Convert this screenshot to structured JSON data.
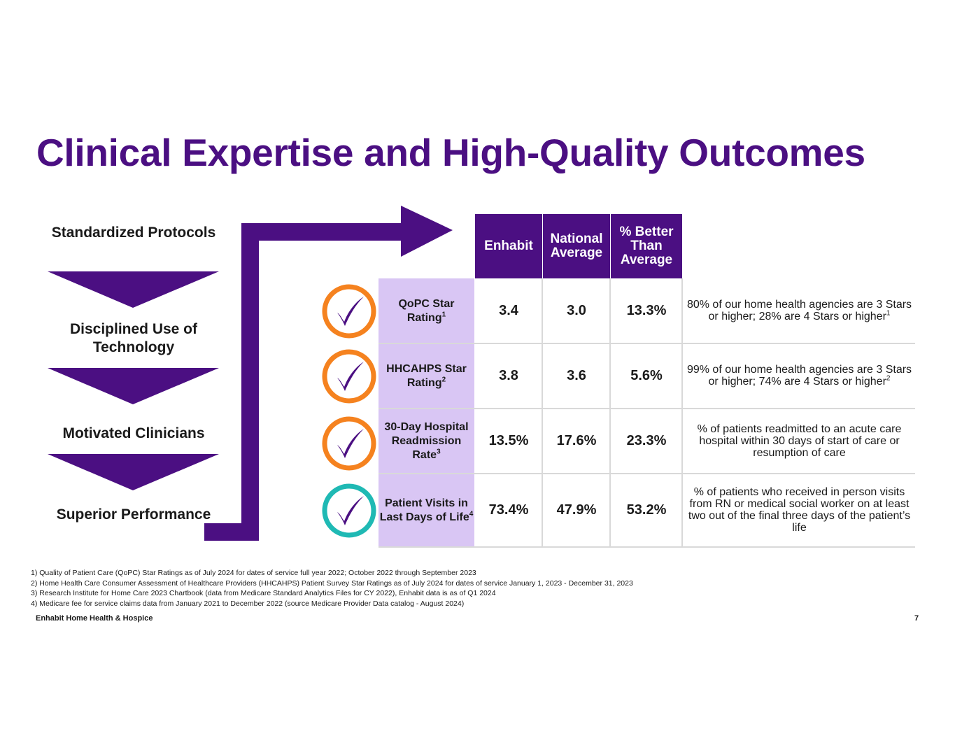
{
  "title": "Clinical Expertise and High-Quality Outcomes",
  "colors": {
    "primary_purple": "#4b0f82",
    "label_lavender": "#d9c6f4",
    "check_orange": "#f5821f",
    "check_teal": "#1fb9b4",
    "border_gray": "#d9d9d9"
  },
  "process_steps": [
    {
      "label": "Standardized Protocols"
    },
    {
      "label": "Disciplined Use of Technology"
    },
    {
      "label": "Motivated Clinicians"
    },
    {
      "label": "Superior Performance"
    }
  ],
  "table": {
    "headers": {
      "enhabit": "Enhabit",
      "national": "National Average",
      "better": "% Better Than Average"
    },
    "rows": [
      {
        "label": "QoPC Star Rating",
        "sup": "1",
        "enhabit": "3.4",
        "national": "3.0",
        "better": "13.3%",
        "note": "80% of our home health agencies are 3 Stars or higher; 28% are 4 Stars or higher",
        "note_sup": "1",
        "check_icon": "orange-check-icon"
      },
      {
        "label": "HHCAHPS Star Rating",
        "sup": "2",
        "enhabit": "3.8",
        "national": "3.6",
        "better": "5.6%",
        "note": "99% of our home health agencies are 3 Stars or higher; 74% are 4 Stars or higher",
        "note_sup": "2",
        "check_icon": "orange-check-icon"
      },
      {
        "label": "30-Day Hospital Readmission Rate",
        "sup": "3",
        "enhabit": "13.5%",
        "national": "17.6%",
        "better": "23.3%",
        "note": "% of patients readmitted to an acute care hospital within 30 days of start of care or resumption of care",
        "note_sup": "",
        "check_icon": "orange-check-icon"
      },
      {
        "label": "Patient Visits in Last Days of Life",
        "sup": "4",
        "enhabit": "73.4%",
        "national": "47.9%",
        "better": "53.2%",
        "note": "% of patients who received in person visits from RN or medical social worker on at least two out of the final three days of the patient’s life",
        "note_sup": "",
        "check_icon": "teal-check-icon"
      }
    ]
  },
  "footnotes": [
    "1) Quality of Patient Care (QoPC) Star Ratings as of July 2024 for dates of service full year 2022; October 2022 through September 2023",
    "2) Home Health Care Consumer Assessment of Healthcare Providers (HHCAHPS) Patient Survey Star Ratings as of July 2024 for dates of service January 1, 2023 - December 31, 2023",
    "3) Research Institute for Home Care 2023 Chartbook (data from Medicare Standard Analytics Files for CY 2022), Enhabit data is as of Q1 2024",
    "4) Medicare fee for service claims data from January 2021 to December 2022 (source Medicare Provider Data catalog - August 2024)"
  ],
  "footer": {
    "brand": "Enhabit Home Health & Hospice",
    "page_number": "7"
  }
}
